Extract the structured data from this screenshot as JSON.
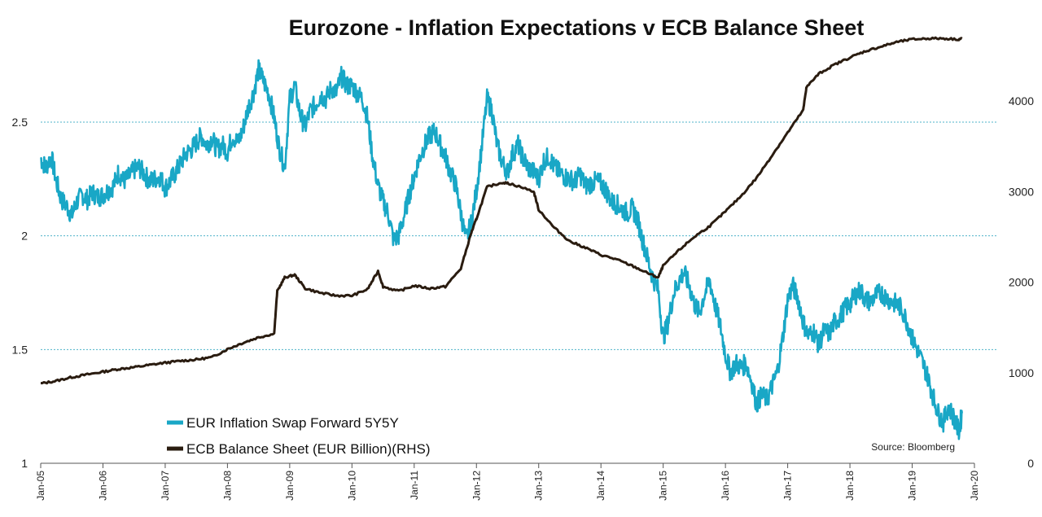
{
  "chart_data": {
    "type": "line",
    "title": "Eurozone - Inflation Expectations v ECB Balance Sheet",
    "source": "Source: Bloomberg",
    "x_ticks": [
      "Jan-05",
      "Jan-06",
      "Jan-07",
      "Jan-08",
      "Jan-09",
      "Jan-10",
      "Jan-11",
      "Jan-12",
      "Jan-13",
      "Jan-14",
      "Jan-15",
      "Jan-16",
      "Jan-17",
      "Jan-18",
      "Jan-19",
      "Jan-20"
    ],
    "x_range": [
      2005.0,
      2020.0
    ],
    "y_left": {
      "ticks": [
        "1",
        "1.5",
        "2",
        "2.5"
      ],
      "range": [
        1.0,
        2.85
      ],
      "gridlines": [
        1.5,
        2.0,
        2.5
      ]
    },
    "y_right": {
      "ticks": [
        "0",
        "1000",
        "2000",
        "3000",
        "4000"
      ],
      "range": [
        0,
        4800
      ]
    },
    "legend": {
      "placement": "bottom-left"
    },
    "colors": {
      "swap": "#19a7c6",
      "balance": "#2a1c10",
      "grid": "#4fb3c9",
      "axis": "#555555"
    },
    "series": [
      {
        "name": "EUR Inflation Swap Forward 5Y5Y",
        "axis": "left",
        "points": [
          [
            2005.0,
            2.34
          ],
          [
            2005.08,
            2.3
          ],
          [
            2005.17,
            2.35
          ],
          [
            2005.25,
            2.24
          ],
          [
            2005.33,
            2.16
          ],
          [
            2005.42,
            2.13
          ],
          [
            2005.5,
            2.09
          ],
          [
            2005.58,
            2.15
          ],
          [
            2005.67,
            2.18
          ],
          [
            2005.75,
            2.16
          ],
          [
            2005.83,
            2.19
          ],
          [
            2005.92,
            2.17
          ],
          [
            2006.0,
            2.18
          ],
          [
            2006.08,
            2.2
          ],
          [
            2006.17,
            2.22
          ],
          [
            2006.25,
            2.28
          ],
          [
            2006.33,
            2.24
          ],
          [
            2006.42,
            2.26
          ],
          [
            2006.5,
            2.29
          ],
          [
            2006.58,
            2.3
          ],
          [
            2006.67,
            2.27
          ],
          [
            2006.75,
            2.24
          ],
          [
            2006.83,
            2.25
          ],
          [
            2006.92,
            2.26
          ],
          [
            2007.0,
            2.21
          ],
          [
            2007.08,
            2.24
          ],
          [
            2007.17,
            2.28
          ],
          [
            2007.25,
            2.32
          ],
          [
            2007.33,
            2.36
          ],
          [
            2007.42,
            2.38
          ],
          [
            2007.5,
            2.41
          ],
          [
            2007.58,
            2.44
          ],
          [
            2007.67,
            2.4
          ],
          [
            2007.75,
            2.43
          ],
          [
            2007.83,
            2.38
          ],
          [
            2007.92,
            2.4
          ],
          [
            2008.0,
            2.37
          ],
          [
            2008.08,
            2.44
          ],
          [
            2008.17,
            2.41
          ],
          [
            2008.25,
            2.47
          ],
          [
            2008.33,
            2.56
          ],
          [
            2008.42,
            2.63
          ],
          [
            2008.5,
            2.73
          ],
          [
            2008.58,
            2.68
          ],
          [
            2008.67,
            2.62
          ],
          [
            2008.75,
            2.52
          ],
          [
            2008.83,
            2.39
          ],
          [
            2008.92,
            2.3
          ],
          [
            2009.0,
            2.6
          ],
          [
            2009.08,
            2.66
          ],
          [
            2009.17,
            2.53
          ],
          [
            2009.25,
            2.48
          ],
          [
            2009.33,
            2.55
          ],
          [
            2009.42,
            2.58
          ],
          [
            2009.5,
            2.62
          ],
          [
            2009.58,
            2.6
          ],
          [
            2009.67,
            2.65
          ],
          [
            2009.75,
            2.63
          ],
          [
            2009.83,
            2.7
          ],
          [
            2009.92,
            2.66
          ],
          [
            2010.0,
            2.66
          ],
          [
            2010.08,
            2.63
          ],
          [
            2010.17,
            2.6
          ],
          [
            2010.25,
            2.52
          ],
          [
            2010.33,
            2.35
          ],
          [
            2010.42,
            2.22
          ],
          [
            2010.5,
            2.15
          ],
          [
            2010.58,
            2.1
          ],
          [
            2010.67,
            1.98
          ],
          [
            2010.75,
            2.0
          ],
          [
            2010.83,
            2.08
          ],
          [
            2010.92,
            2.18
          ],
          [
            2011.0,
            2.26
          ],
          [
            2011.08,
            2.34
          ],
          [
            2011.17,
            2.4
          ],
          [
            2011.25,
            2.44
          ],
          [
            2011.33,
            2.46
          ],
          [
            2011.42,
            2.4
          ],
          [
            2011.5,
            2.35
          ],
          [
            2011.58,
            2.28
          ],
          [
            2011.67,
            2.22
          ],
          [
            2011.75,
            2.1
          ],
          [
            2011.83,
            1.98
          ],
          [
            2011.92,
            2.06
          ],
          [
            2012.0,
            2.2
          ],
          [
            2012.08,
            2.38
          ],
          [
            2012.17,
            2.6
          ],
          [
            2012.25,
            2.55
          ],
          [
            2012.33,
            2.4
          ],
          [
            2012.42,
            2.32
          ],
          [
            2012.5,
            2.28
          ],
          [
            2012.58,
            2.36
          ],
          [
            2012.67,
            2.4
          ],
          [
            2012.75,
            2.34
          ],
          [
            2012.83,
            2.3
          ],
          [
            2012.92,
            2.28
          ],
          [
            2013.0,
            2.25
          ],
          [
            2013.08,
            2.33
          ],
          [
            2013.17,
            2.35
          ],
          [
            2013.25,
            2.3
          ],
          [
            2013.33,
            2.28
          ],
          [
            2013.42,
            2.26
          ],
          [
            2013.5,
            2.25
          ],
          [
            2013.58,
            2.24
          ],
          [
            2013.67,
            2.27
          ],
          [
            2013.75,
            2.22
          ],
          [
            2013.83,
            2.23
          ],
          [
            2013.92,
            2.24
          ],
          [
            2014.0,
            2.23
          ],
          [
            2014.08,
            2.2
          ],
          [
            2014.17,
            2.15
          ],
          [
            2014.25,
            2.14
          ],
          [
            2014.33,
            2.12
          ],
          [
            2014.42,
            2.1
          ],
          [
            2014.5,
            2.12
          ],
          [
            2014.58,
            2.08
          ],
          [
            2014.67,
            1.98
          ],
          [
            2014.75,
            1.9
          ],
          [
            2014.83,
            1.82
          ],
          [
            2014.92,
            1.76
          ],
          [
            2015.0,
            1.55
          ],
          [
            2015.08,
            1.62
          ],
          [
            2015.17,
            1.75
          ],
          [
            2015.25,
            1.8
          ],
          [
            2015.33,
            1.84
          ],
          [
            2015.42,
            1.78
          ],
          [
            2015.5,
            1.7
          ],
          [
            2015.58,
            1.66
          ],
          [
            2015.67,
            1.75
          ],
          [
            2015.75,
            1.8
          ],
          [
            2015.83,
            1.7
          ],
          [
            2015.92,
            1.6
          ],
          [
            2016.0,
            1.48
          ],
          [
            2016.08,
            1.4
          ],
          [
            2016.17,
            1.44
          ],
          [
            2016.25,
            1.42
          ],
          [
            2016.33,
            1.44
          ],
          [
            2016.42,
            1.36
          ],
          [
            2016.5,
            1.26
          ],
          [
            2016.58,
            1.3
          ],
          [
            2016.67,
            1.28
          ],
          [
            2016.75,
            1.34
          ],
          [
            2016.83,
            1.4
          ],
          [
            2016.92,
            1.55
          ],
          [
            2017.0,
            1.72
          ],
          [
            2017.08,
            1.78
          ],
          [
            2017.17,
            1.72
          ],
          [
            2017.25,
            1.62
          ],
          [
            2017.33,
            1.56
          ],
          [
            2017.42,
            1.58
          ],
          [
            2017.5,
            1.52
          ],
          [
            2017.58,
            1.58
          ],
          [
            2017.67,
            1.57
          ],
          [
            2017.75,
            1.62
          ],
          [
            2017.83,
            1.64
          ],
          [
            2017.92,
            1.68
          ],
          [
            2018.0,
            1.7
          ],
          [
            2018.08,
            1.74
          ],
          [
            2018.17,
            1.76
          ],
          [
            2018.25,
            1.72
          ],
          [
            2018.33,
            1.71
          ],
          [
            2018.42,
            1.74
          ],
          [
            2018.5,
            1.75
          ],
          [
            2018.58,
            1.73
          ],
          [
            2018.67,
            1.71
          ],
          [
            2018.75,
            1.7
          ],
          [
            2018.83,
            1.68
          ],
          [
            2018.92,
            1.62
          ],
          [
            2019.0,
            1.55
          ],
          [
            2019.08,
            1.5
          ],
          [
            2019.17,
            1.44
          ],
          [
            2019.25,
            1.38
          ],
          [
            2019.33,
            1.3
          ],
          [
            2019.42,
            1.22
          ],
          [
            2019.5,
            1.18
          ],
          [
            2019.58,
            1.25
          ],
          [
            2019.67,
            1.2
          ],
          [
            2019.75,
            1.14
          ],
          [
            2019.8,
            1.22
          ]
        ]
      },
      {
        "name": "ECB Balance Sheet (EUR Billion)(RHS)",
        "axis": "right",
        "points": [
          [
            2005.0,
            880
          ],
          [
            2005.25,
            910
          ],
          [
            2005.5,
            950
          ],
          [
            2005.75,
            980
          ],
          [
            2006.0,
            1010
          ],
          [
            2006.25,
            1040
          ],
          [
            2006.5,
            1060
          ],
          [
            2006.75,
            1085
          ],
          [
            2007.0,
            1110
          ],
          [
            2007.25,
            1130
          ],
          [
            2007.5,
            1145
          ],
          [
            2007.75,
            1170
          ],
          [
            2008.0,
            1260
          ],
          [
            2008.25,
            1330
          ],
          [
            2008.5,
            1390
          ],
          [
            2008.75,
            1430
          ],
          [
            2008.8,
            1900
          ],
          [
            2008.92,
            2050
          ],
          [
            2009.08,
            2080
          ],
          [
            2009.25,
            1930
          ],
          [
            2009.5,
            1880
          ],
          [
            2009.75,
            1850
          ],
          [
            2010.0,
            1850
          ],
          [
            2010.25,
            1920
          ],
          [
            2010.42,
            2120
          ],
          [
            2010.5,
            1950
          ],
          [
            2010.75,
            1900
          ],
          [
            2011.0,
            1960
          ],
          [
            2011.25,
            1930
          ],
          [
            2011.5,
            1950
          ],
          [
            2011.75,
            2150
          ],
          [
            2011.92,
            2550
          ],
          [
            2012.0,
            2700
          ],
          [
            2012.17,
            3050
          ],
          [
            2012.42,
            3100
          ],
          [
            2012.58,
            3080
          ],
          [
            2012.92,
            3000
          ],
          [
            2013.0,
            2800
          ],
          [
            2013.25,
            2600
          ],
          [
            2013.5,
            2450
          ],
          [
            2013.75,
            2380
          ],
          [
            2014.0,
            2300
          ],
          [
            2014.25,
            2250
          ],
          [
            2014.5,
            2180
          ],
          [
            2014.75,
            2100
          ],
          [
            2014.92,
            2050
          ],
          [
            2015.0,
            2180
          ],
          [
            2015.25,
            2350
          ],
          [
            2015.5,
            2500
          ],
          [
            2015.75,
            2620
          ],
          [
            2016.0,
            2780
          ],
          [
            2016.25,
            2950
          ],
          [
            2016.5,
            3150
          ],
          [
            2016.75,
            3400
          ],
          [
            2017.0,
            3650
          ],
          [
            2017.25,
            3900
          ],
          [
            2017.3,
            4150
          ],
          [
            2017.5,
            4300
          ],
          [
            2017.75,
            4400
          ],
          [
            2018.0,
            4480
          ],
          [
            2018.25,
            4550
          ],
          [
            2018.5,
            4600
          ],
          [
            2018.75,
            4650
          ],
          [
            2019.0,
            4680
          ],
          [
            2019.25,
            4690
          ],
          [
            2019.5,
            4690
          ],
          [
            2019.75,
            4680
          ],
          [
            2019.8,
            4690
          ]
        ]
      }
    ]
  }
}
